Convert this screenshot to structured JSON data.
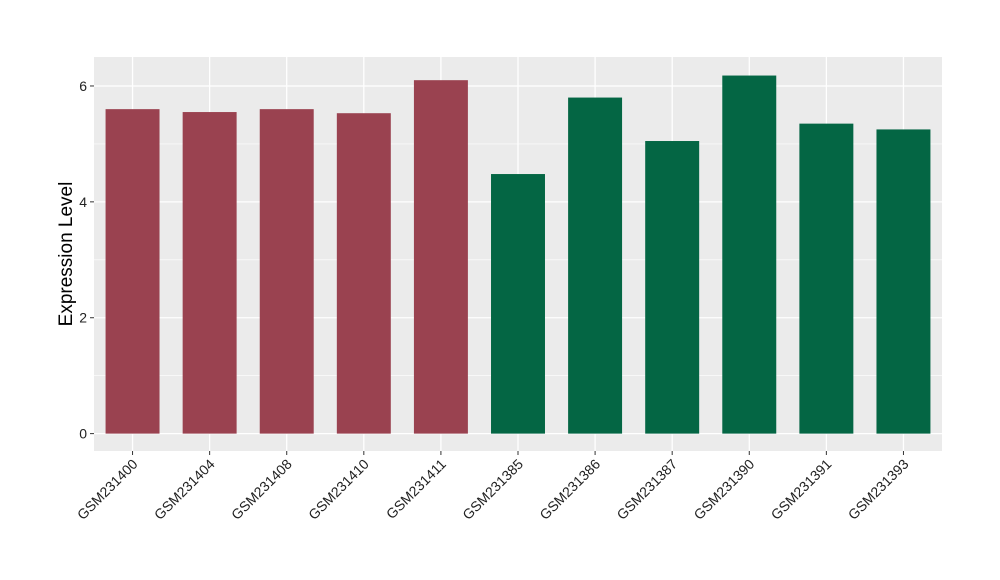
{
  "chart_data": {
    "type": "bar",
    "xlabel": "",
    "ylabel": "Expression Level",
    "ylim": [
      -0.3,
      6.5
    ],
    "yticks": [
      0,
      2,
      4,
      6
    ],
    "grid": true,
    "legend": "none",
    "categories": [
      "GSM231400",
      "GSM231404",
      "GSM231408",
      "GSM231410",
      "GSM231411",
      "GSM231385",
      "GSM231386",
      "GSM231387",
      "GSM231390",
      "GSM231391",
      "GSM231393"
    ],
    "values": [
      5.6,
      5.55,
      5.6,
      5.53,
      6.1,
      4.48,
      5.8,
      5.05,
      6.18,
      5.35,
      5.25
    ],
    "groups": [
      0,
      0,
      0,
      0,
      0,
      1,
      1,
      1,
      1,
      1,
      1
    ],
    "group_colors": [
      "#9a4250",
      "#046644"
    ],
    "panel_background": "#ebebeb",
    "grid_color": "#ffffff"
  }
}
